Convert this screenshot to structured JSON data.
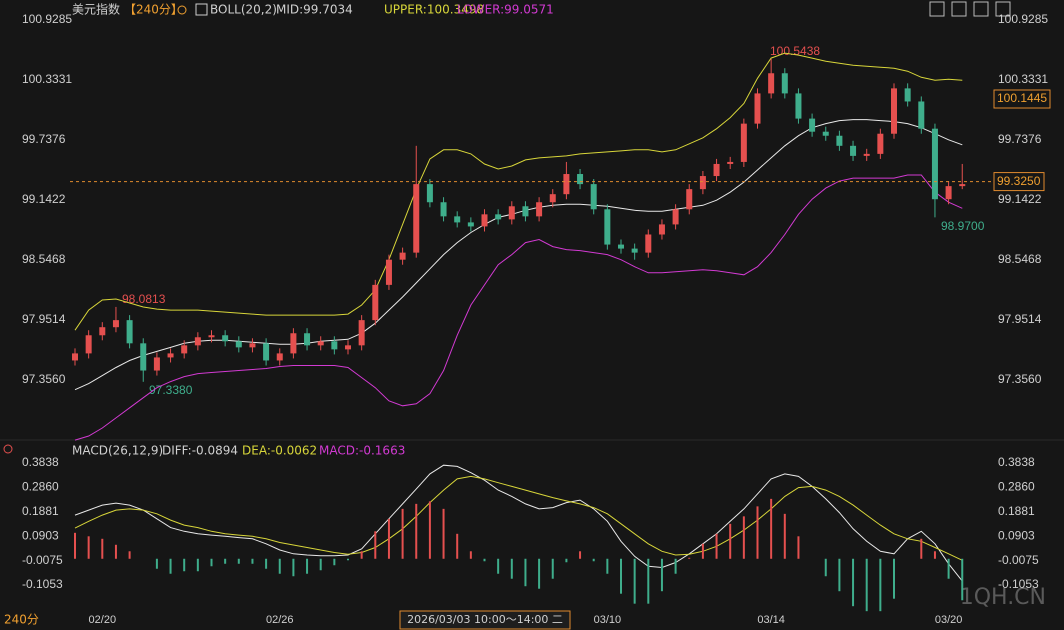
{
  "header": {
    "symbol": "美元指数",
    "period": "【240分】"
  },
  "chart_data": [
    {
      "type": "candlestick",
      "title": "BOLL(20,2)",
      "categories": [
        null,
        null,
        "02/20",
        null,
        null,
        null,
        null,
        null,
        null,
        null,
        null,
        null,
        null,
        null,
        null,
        "02/26",
        null,
        null,
        null,
        null,
        null,
        null,
        null,
        null,
        null,
        null,
        null,
        null,
        null,
        null,
        null,
        null,
        null,
        null,
        null,
        null,
        null,
        null,
        null,
        "03/10",
        null,
        null,
        null,
        null,
        null,
        null,
        null,
        null,
        null,
        null,
        null,
        "03/14",
        null,
        null,
        null,
        null,
        null,
        null,
        null,
        null,
        null,
        null,
        null,
        null,
        "03/20",
        null
      ],
      "open": [
        97.55,
        97.62,
        97.8,
        97.88,
        97.95,
        97.72,
        97.45,
        97.58,
        97.62,
        97.7,
        97.78,
        97.8,
        97.74,
        97.68,
        97.72,
        97.55,
        97.62,
        97.82,
        97.7,
        97.74,
        97.66,
        97.7,
        97.95,
        98.3,
        98.55,
        98.62,
        99.3,
        99.12,
        98.98,
        98.92,
        98.88,
        99.0,
        98.95,
        99.08,
        98.98,
        99.12,
        99.2,
        99.4,
        99.3,
        99.05,
        98.7,
        98.66,
        98.62,
        98.8,
        98.9,
        99.05,
        99.25,
        99.38,
        99.5,
        99.52,
        99.9,
        100.2,
        100.4,
        100.2,
        99.95,
        99.82,
        99.78,
        99.68,
        99.58,
        99.6,
        99.8,
        100.25,
        100.12,
        99.85,
        99.15,
        99.28
      ],
      "high": [
        97.67,
        97.85,
        97.93,
        98.0813,
        98.0,
        97.77,
        97.63,
        97.67,
        97.75,
        97.83,
        97.85,
        97.85,
        97.79,
        97.77,
        97.77,
        97.67,
        97.87,
        97.87,
        97.79,
        97.79,
        97.75,
        98.0,
        98.35,
        98.6,
        98.67,
        99.68,
        99.35,
        99.17,
        99.03,
        98.97,
        99.05,
        99.05,
        99.13,
        99.13,
        99.17,
        99.25,
        99.52,
        99.45,
        99.35,
        99.1,
        98.75,
        98.71,
        98.85,
        98.95,
        99.1,
        99.3,
        99.43,
        99.55,
        99.57,
        99.95,
        100.25,
        100.5438,
        100.45,
        100.25,
        100.0,
        99.87,
        99.83,
        99.73,
        99.65,
        99.85,
        100.3,
        100.3,
        100.17,
        99.9,
        99.33,
        99.5
      ],
      "low": [
        97.5,
        97.57,
        97.75,
        97.83,
        97.67,
        97.338,
        97.4,
        97.53,
        97.57,
        97.65,
        97.73,
        97.69,
        97.63,
        97.63,
        97.5,
        97.5,
        97.57,
        97.65,
        97.65,
        97.61,
        97.61,
        97.65,
        97.9,
        98.25,
        98.5,
        98.57,
        99.07,
        98.93,
        98.87,
        98.83,
        98.83,
        98.9,
        98.9,
        98.93,
        98.93,
        99.07,
        99.15,
        99.25,
        99.0,
        98.65,
        98.61,
        98.55,
        98.57,
        98.75,
        98.85,
        99.0,
        99.2,
        99.33,
        99.45,
        99.47,
        99.85,
        100.15,
        100.15,
        99.9,
        99.77,
        99.73,
        99.63,
        99.53,
        99.53,
        99.55,
        99.75,
        100.07,
        99.8,
        98.97,
        99.1,
        99.25
      ],
      "close": [
        97.62,
        97.8,
        97.88,
        97.95,
        97.72,
        97.45,
        97.58,
        97.62,
        97.7,
        97.78,
        97.8,
        97.74,
        97.68,
        97.72,
        97.55,
        97.62,
        97.82,
        97.7,
        97.74,
        97.66,
        97.7,
        97.95,
        98.3,
        98.55,
        98.62,
        99.3,
        99.12,
        98.98,
        98.92,
        98.88,
        99.0,
        98.95,
        99.08,
        98.98,
        99.12,
        99.2,
        99.4,
        99.3,
        99.05,
        98.7,
        98.66,
        98.62,
        98.8,
        98.9,
        99.05,
        99.25,
        99.38,
        99.5,
        99.52,
        99.9,
        100.2,
        100.4,
        100.2,
        99.95,
        99.82,
        99.78,
        99.68,
        99.58,
        99.6,
        99.8,
        100.25,
        100.12,
        99.85,
        99.15,
        99.28,
        99.3
      ],
      "up_color": "#e5504f",
      "down_color": "#3fae8c",
      "series": [
        {
          "name": "MID:99.7034",
          "color": "#e8e8e8",
          "values": [
            97.26,
            97.32,
            97.4,
            97.48,
            97.55,
            97.6,
            97.64,
            97.68,
            97.72,
            97.74,
            97.75,
            97.75,
            97.74,
            97.73,
            97.72,
            97.71,
            97.71,
            97.72,
            97.74,
            97.75,
            97.76,
            97.82,
            97.92,
            98.05,
            98.18,
            98.32,
            98.46,
            98.6,
            98.72,
            98.82,
            98.9,
            98.97,
            99.0,
            99.04,
            99.07,
            99.09,
            99.1,
            99.1,
            99.09,
            99.08,
            99.06,
            99.04,
            99.03,
            99.03,
            99.05,
            99.07,
            99.09,
            99.14,
            99.22,
            99.32,
            99.44,
            99.56,
            99.68,
            99.78,
            99.86,
            99.9,
            99.93,
            99.94,
            99.94,
            99.93,
            99.92,
            99.9,
            99.86,
            99.8,
            99.74,
            99.69
          ]
        },
        {
          "name": "UPPER:100.3498",
          "color": "#d8d63a",
          "values": [
            97.85,
            98.05,
            98.15,
            98.16,
            98.12,
            98.08,
            98.06,
            98.05,
            98.05,
            98.05,
            98.04,
            98.03,
            98.02,
            98.01,
            98.0,
            98.0,
            98.0,
            98.0,
            98.0,
            98.0,
            98.01,
            98.1,
            98.25,
            98.55,
            98.9,
            99.25,
            99.55,
            99.64,
            99.64,
            99.6,
            99.5,
            99.45,
            99.48,
            99.54,
            99.56,
            99.57,
            99.58,
            99.6,
            99.61,
            99.62,
            99.63,
            99.64,
            99.64,
            99.62,
            99.64,
            99.7,
            99.76,
            99.85,
            99.96,
            100.1,
            100.35,
            100.55,
            100.6,
            100.58,
            100.55,
            100.52,
            100.5,
            100.48,
            100.47,
            100.46,
            100.45,
            100.42,
            100.36,
            100.33,
            100.34,
            100.33
          ]
        },
        {
          "name": "LOWER:99.0571",
          "color": "#d23ad2",
          "values": [
            96.76,
            96.8,
            96.88,
            96.98,
            97.08,
            97.18,
            97.28,
            97.34,
            97.39,
            97.42,
            97.43,
            97.44,
            97.45,
            97.46,
            97.47,
            97.49,
            97.5,
            97.5,
            97.5,
            97.5,
            97.48,
            97.38,
            97.28,
            97.15,
            97.1,
            97.12,
            97.22,
            97.45,
            97.8,
            98.1,
            98.3,
            98.5,
            98.6,
            98.72,
            98.75,
            98.68,
            98.65,
            98.64,
            98.62,
            98.6,
            98.55,
            98.48,
            98.42,
            98.42,
            98.43,
            98.44,
            98.45,
            98.44,
            98.42,
            98.4,
            98.48,
            98.62,
            98.8,
            99.0,
            99.15,
            99.26,
            99.33,
            99.36,
            99.36,
            99.36,
            99.36,
            99.39,
            99.39,
            99.22,
            99.12,
            99.06
          ]
        }
      ],
      "ylim": [
        96.711,
        100.9285
      ],
      "yticks": [
        100.9285,
        100.3331,
        99.7376,
        99.1422,
        98.5468,
        97.9514,
        {
          "value": 97.356,
          "label": "97.3560"
        }
      ],
      "current_price": {
        "value": 99.325,
        "label": "99.3250"
      },
      "hover_price": 100.1445,
      "annotations": [
        "100.5438",
        "98.0813",
        "97.3380",
        "98.9700"
      ]
    },
    {
      "type": "macd",
      "title": "MACD(26,12,9)",
      "series": [
        {
          "name": "DIFF:-0.0894",
          "color": "#e8e8e8",
          "values": [
            0.175,
            0.195,
            0.215,
            0.223,
            0.215,
            0.195,
            0.16,
            0.125,
            0.11,
            0.1,
            0.095,
            0.09,
            0.085,
            0.08,
            0.06,
            0.035,
            0.02,
            0.015,
            0.012,
            0.012,
            0.015,
            0.04,
            0.1,
            0.16,
            0.22,
            0.28,
            0.34,
            0.375,
            0.37,
            0.345,
            0.315,
            0.275,
            0.25,
            0.22,
            0.2,
            0.205,
            0.225,
            0.235,
            0.2,
            0.15,
            0.07,
            0.01,
            -0.03,
            -0.035,
            -0.015,
            0.02,
            0.06,
            0.1,
            0.15,
            0.2,
            0.26,
            0.32,
            0.34,
            0.33,
            0.29,
            0.24,
            0.185,
            0.12,
            0.07,
            0.03,
            0.02,
            0.08,
            0.11,
            0.06,
            -0.02,
            -0.0894
          ]
        },
        {
          "name": "DEA:-0.0062",
          "color": "#d8d63a",
          "values": [
            0.123,
            0.15,
            0.175,
            0.195,
            0.2,
            0.195,
            0.18,
            0.155,
            0.135,
            0.125,
            0.11,
            0.1,
            0.095,
            0.09,
            0.08,
            0.065,
            0.055,
            0.045,
            0.035,
            0.025,
            0.018,
            0.025,
            0.045,
            0.08,
            0.12,
            0.17,
            0.225,
            0.275,
            0.32,
            0.33,
            0.32,
            0.305,
            0.29,
            0.275,
            0.26,
            0.245,
            0.232,
            0.22,
            0.205,
            0.18,
            0.14,
            0.1,
            0.06,
            0.03,
            0.015,
            0.018,
            0.03,
            0.05,
            0.08,
            0.115,
            0.155,
            0.2,
            0.25,
            0.285,
            0.29,
            0.275,
            0.25,
            0.215,
            0.175,
            0.135,
            0.1,
            0.08,
            0.07,
            0.045,
            0.02,
            -0.0062
          ]
        },
        {
          "name": "MACD:-0.1663",
          "color": "#d23ad2",
          "type": "histogram",
          "values": [
            0.104,
            0.09,
            0.08,
            0.056,
            0.03,
            0.0,
            -0.04,
            -0.06,
            -0.05,
            -0.05,
            -0.03,
            -0.02,
            -0.02,
            -0.02,
            -0.04,
            -0.06,
            -0.07,
            -0.06,
            -0.046,
            -0.026,
            -0.006,
            0.03,
            0.11,
            0.16,
            0.2,
            0.22,
            0.23,
            0.2,
            0.1,
            0.03,
            -0.01,
            -0.06,
            -0.08,
            -0.11,
            -0.12,
            -0.08,
            -0.014,
            0.03,
            -0.01,
            -0.06,
            -0.14,
            -0.18,
            -0.18,
            -0.13,
            -0.06,
            0.004,
            0.06,
            0.1,
            0.14,
            0.17,
            0.21,
            0.24,
            0.18,
            0.09,
            0.0,
            -0.07,
            -0.13,
            -0.19,
            -0.21,
            -0.21,
            -0.16,
            0.0,
            0.08,
            0.03,
            -0.08,
            -0.1663
          ]
        }
      ],
      "ylim": [
        -0.2053,
        0.4158
      ],
      "yticks": [
        0.3838,
        {
          "value": 0.286,
          "label": "0.2860"
        },
        0.1881,
        0.0903,
        -0.0075,
        -0.1053
      ]
    }
  ],
  "crosshair_label": "2026/03/03 10:00～14:00 二",
  "footer_period": "240分",
  "watermark": "1QH.CN"
}
